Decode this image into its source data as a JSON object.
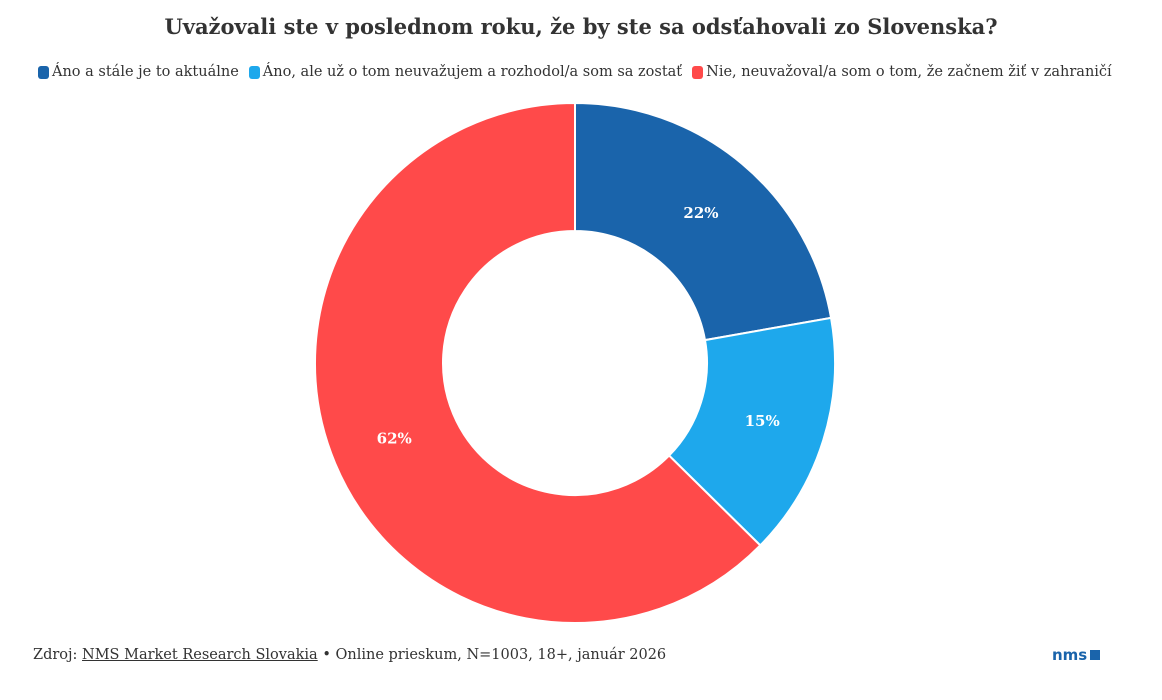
{
  "chart_data": {
    "type": "pie",
    "variant": "donut",
    "title": "Uvažovali ste v poslednom roku, že by ste sa odsťahovali zo Slovenska?",
    "categories": [
      "Áno a stále je to aktuálne",
      "Áno, ale už o tom neuvažujem a rozhodol/a som sa zostať",
      "Nie, neuvažoval/a som o tom, že začnem žiť v zahraničí"
    ],
    "values": [
      22,
      15,
      62
    ],
    "labels": [
      "22%",
      "15%",
      "62%"
    ],
    "colors": [
      "#1a64ab",
      "#1ea8ec",
      "#ff4a4a"
    ],
    "legend_position": "top"
  },
  "footer": {
    "source_prefix": "Zdroj:",
    "source_link": "NMS Market Research Slovakia",
    "details": "• Online prieskum, N=1003, 18+, január 2026"
  },
  "logo": {
    "text": "nms"
  }
}
